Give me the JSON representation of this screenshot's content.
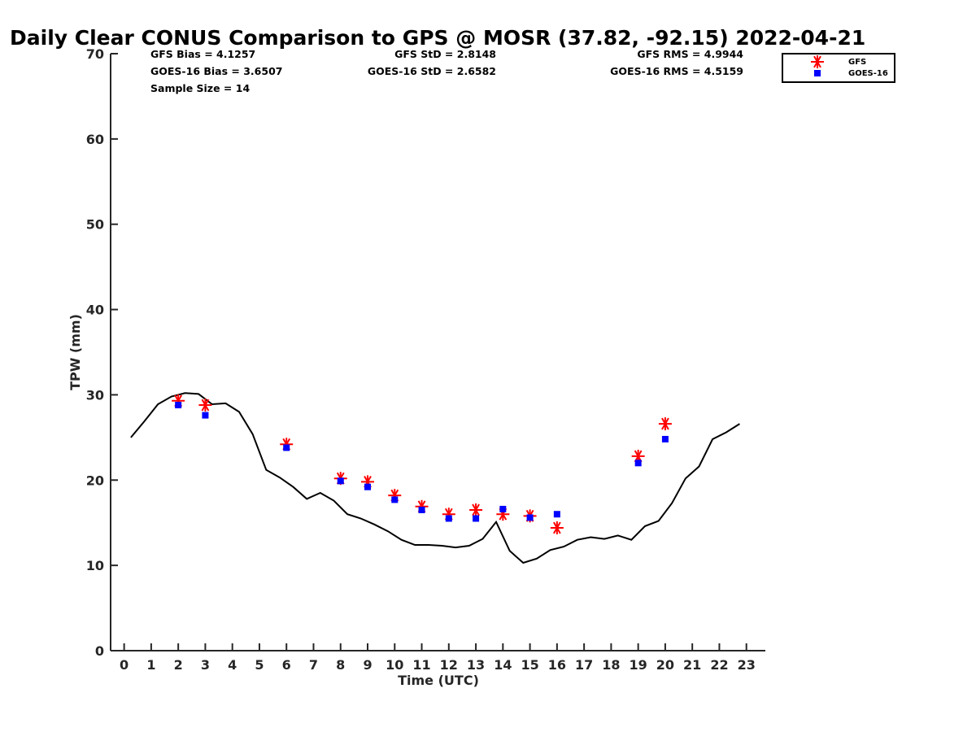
{
  "chart_data": {
    "type": "scatter",
    "title": "Daily Clear CONUS Comparison to GPS @ MOSR (37.82, -92.15) 2022-04-21",
    "xlabel": "Time (UTC)",
    "ylabel": "TPW (mm)",
    "xlim": [
      -0.5,
      23.7
    ],
    "ylim": [
      0,
      70
    ],
    "xticks": [
      0,
      1,
      2,
      3,
      4,
      5,
      6,
      7,
      8,
      9,
      10,
      11,
      12,
      13,
      14,
      15,
      16,
      17,
      18,
      19,
      20,
      21,
      22,
      23
    ],
    "yticks": [
      0,
      10,
      20,
      30,
      40,
      50,
      60,
      70
    ],
    "grid": false,
    "legend_position": "top-right",
    "stats": {
      "gfs_bias": "GFS Bias = 4.1257",
      "goes_bias": "GOES-16 Bias = 3.6507",
      "sample_size": "Sample Size = 14",
      "gfs_std": "GFS StD = 2.8148",
      "goes_std": "GOES-16 StD = 2.6582",
      "gfs_rms": "GFS RMS = 4.9944",
      "goes_rms": "GOES-16 RMS = 4.5159"
    },
    "series": [
      {
        "name": "GPS",
        "type": "line",
        "color": "#000000",
        "x": [
          0.25,
          0.75,
          1.25,
          1.75,
          2.25,
          2.75,
          3.25,
          3.75,
          4.25,
          4.75,
          5.25,
          5.75,
          6.25,
          6.75,
          7.25,
          7.75,
          8.25,
          8.75,
          9.25,
          9.75,
          10.25,
          10.75,
          11.25,
          11.75,
          12.25,
          12.75,
          13.25,
          13.75,
          14.25,
          14.75,
          15.25,
          15.75,
          16.25,
          16.75,
          17.25,
          17.75,
          18.25,
          18.75,
          19.25,
          19.75,
          20.25,
          20.75,
          21.25,
          21.75,
          22.25,
          22.75
        ],
        "y": [
          25.0,
          26.9,
          28.9,
          29.8,
          30.2,
          30.1,
          28.9,
          29.0,
          28.0,
          25.4,
          21.2,
          20.3,
          19.2,
          17.8,
          18.5,
          17.6,
          16.0,
          15.5,
          14.8,
          14.0,
          13.0,
          12.4,
          12.4,
          12.3,
          12.1,
          12.3,
          13.1,
          15.1,
          11.7,
          10.3,
          10.8,
          11.8,
          12.2,
          13.0,
          13.3,
          13.1,
          13.5,
          13.0,
          14.6,
          15.2,
          17.3,
          20.2,
          21.6,
          24.8,
          25.6,
          26.6
        ]
      },
      {
        "name": "GFS",
        "type": "scatter",
        "marker": "asterisk",
        "color": "#ff0000",
        "x": [
          2,
          3,
          6,
          8,
          9,
          10,
          11,
          12,
          13,
          14,
          15,
          16,
          19,
          20
        ],
        "y": [
          29.3,
          28.8,
          24.2,
          20.2,
          19.8,
          18.2,
          16.9,
          16.0,
          16.5,
          16.0,
          15.8,
          14.4,
          22.8,
          26.6
        ]
      },
      {
        "name": "GOES-16",
        "type": "scatter",
        "marker": "square",
        "color": "#0000ff",
        "x": [
          2,
          3,
          6,
          8,
          9,
          10,
          11,
          12,
          13,
          14,
          15,
          16,
          19,
          20
        ],
        "y": [
          28.8,
          27.6,
          23.8,
          19.9,
          19.2,
          17.7,
          16.5,
          15.5,
          15.5,
          16.6,
          15.6,
          16.0,
          22.0,
          24.8
        ]
      }
    ]
  }
}
